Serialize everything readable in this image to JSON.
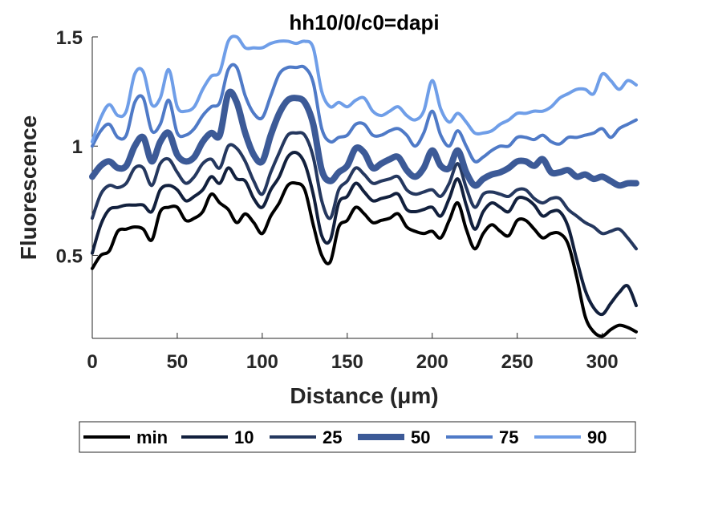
{
  "chart_data": {
    "type": "line",
    "title": "hh10/0/c0=dapi",
    "xlabel": "Distance (μm)",
    "ylabel": "Fluorescence",
    "xlim": [
      0,
      320
    ],
    "ylim": [
      0.12,
      1.5
    ],
    "xticks": [
      0,
      50,
      100,
      150,
      200,
      250,
      300
    ],
    "yticks": [
      0.5,
      1,
      1.5
    ],
    "ytick_labels": [
      "0.5",
      "1",
      "1.5"
    ],
    "grid": false,
    "legend_position": "bottom, outside plot, horizontal",
    "x": [
      0,
      5,
      10,
      15,
      20,
      25,
      30,
      35,
      40,
      45,
      50,
      55,
      60,
      65,
      70,
      75,
      80,
      85,
      90,
      95,
      100,
      105,
      110,
      115,
      120,
      125,
      130,
      135,
      140,
      145,
      150,
      155,
      160,
      165,
      170,
      175,
      180,
      185,
      190,
      195,
      200,
      205,
      210,
      215,
      220,
      225,
      230,
      235,
      240,
      245,
      250,
      255,
      260,
      265,
      270,
      275,
      280,
      285,
      290,
      295,
      300,
      305,
      310,
      315,
      320
    ],
    "series": [
      {
        "name": "min",
        "color": "#000000",
        "width": 4,
        "values": [
          0.44,
          0.5,
          0.52,
          0.61,
          0.62,
          0.63,
          0.62,
          0.57,
          0.7,
          0.72,
          0.72,
          0.66,
          0.67,
          0.7,
          0.78,
          0.74,
          0.71,
          0.65,
          0.69,
          0.65,
          0.6,
          0.68,
          0.74,
          0.82,
          0.83,
          0.8,
          0.64,
          0.5,
          0.47,
          0.63,
          0.66,
          0.72,
          0.69,
          0.65,
          0.66,
          0.67,
          0.69,
          0.63,
          0.61,
          0.6,
          0.61,
          0.58,
          0.66,
          0.74,
          0.62,
          0.53,
          0.6,
          0.64,
          0.61,
          0.59,
          0.66,
          0.66,
          0.62,
          0.58,
          0.6,
          0.6,
          0.55,
          0.4,
          0.22,
          0.15,
          0.13,
          0.16,
          0.18,
          0.17,
          0.15
        ]
      },
      {
        "name": "10",
        "color": "#12203d",
        "width": 4,
        "values": [
          0.51,
          0.64,
          0.71,
          0.72,
          0.73,
          0.73,
          0.73,
          0.7,
          0.8,
          0.82,
          0.8,
          0.75,
          0.77,
          0.8,
          0.86,
          0.83,
          0.9,
          0.85,
          0.84,
          0.76,
          0.72,
          0.8,
          0.86,
          0.95,
          0.97,
          0.92,
          0.78,
          0.59,
          0.57,
          0.74,
          0.77,
          0.83,
          0.79,
          0.75,
          0.76,
          0.77,
          0.78,
          0.71,
          0.7,
          0.71,
          0.72,
          0.68,
          0.76,
          0.85,
          0.73,
          0.62,
          0.7,
          0.74,
          0.72,
          0.7,
          0.76,
          0.76,
          0.73,
          0.68,
          0.7,
          0.7,
          0.63,
          0.48,
          0.34,
          0.26,
          0.23,
          0.28,
          0.33,
          0.36,
          0.27
        ]
      },
      {
        "name": "25",
        "color": "#25385f",
        "width": 4,
        "values": [
          0.67,
          0.78,
          0.82,
          0.81,
          0.83,
          0.9,
          0.9,
          0.82,
          0.92,
          0.94,
          0.88,
          0.83,
          0.86,
          0.92,
          0.94,
          0.9,
          1.0,
          0.99,
          0.93,
          0.84,
          0.78,
          0.88,
          0.97,
          1.05,
          1.06,
          1.05,
          0.95,
          0.75,
          0.67,
          0.8,
          0.84,
          0.9,
          0.87,
          0.83,
          0.84,
          0.85,
          0.86,
          0.8,
          0.78,
          0.79,
          0.8,
          0.77,
          0.83,
          0.92,
          0.81,
          0.72,
          0.78,
          0.79,
          0.78,
          0.77,
          0.8,
          0.8,
          0.76,
          0.74,
          0.76,
          0.76,
          0.71,
          0.68,
          0.65,
          0.63,
          0.6,
          0.61,
          0.62,
          0.58,
          0.53
        ]
      },
      {
        "name": "50",
        "color": "#3c5a97",
        "width": 8,
        "values": [
          0.86,
          0.91,
          0.93,
          0.9,
          0.91,
          1.0,
          1.04,
          0.93,
          1.02,
          1.06,
          0.96,
          0.93,
          0.95,
          1.02,
          1.06,
          1.05,
          1.24,
          1.2,
          1.06,
          0.96,
          0.93,
          1.05,
          1.15,
          1.21,
          1.22,
          1.2,
          1.1,
          0.89,
          0.84,
          0.88,
          0.91,
          0.99,
          0.97,
          0.9,
          0.92,
          0.94,
          0.95,
          0.89,
          0.86,
          0.9,
          0.98,
          0.91,
          0.9,
          0.98,
          0.88,
          0.82,
          0.85,
          0.87,
          0.88,
          0.9,
          0.93,
          0.93,
          0.91,
          0.94,
          0.88,
          0.88,
          0.89,
          0.86,
          0.87,
          0.85,
          0.86,
          0.84,
          0.82,
          0.83,
          0.83
        ]
      },
      {
        "name": "75",
        "color": "#4f7ac7",
        "width": 4,
        "values": [
          1.0,
          1.07,
          1.1,
          1.04,
          1.05,
          1.2,
          1.22,
          1.07,
          1.1,
          1.21,
          1.06,
          1.05,
          1.08,
          1.14,
          1.18,
          1.2,
          1.35,
          1.36,
          1.23,
          1.15,
          1.13,
          1.23,
          1.33,
          1.36,
          1.36,
          1.36,
          1.29,
          1.08,
          1.02,
          1.04,
          1.05,
          1.1,
          1.1,
          1.05,
          1.05,
          1.07,
          1.08,
          1.05,
          1.0,
          1.06,
          1.16,
          1.05,
          1.0,
          1.07,
          1.0,
          0.93,
          0.95,
          0.98,
          1.0,
          1.0,
          1.04,
          1.04,
          1.03,
          1.05,
          1.02,
          1.01,
          1.04,
          1.04,
          1.05,
          1.06,
          1.08,
          1.04,
          1.08,
          1.1,
          1.12
        ]
      },
      {
        "name": "90",
        "color": "#6f9ee8",
        "width": 4,
        "values": [
          1.02,
          1.13,
          1.19,
          1.14,
          1.16,
          1.33,
          1.34,
          1.19,
          1.22,
          1.35,
          1.18,
          1.16,
          1.18,
          1.26,
          1.32,
          1.34,
          1.48,
          1.5,
          1.45,
          1.45,
          1.45,
          1.47,
          1.48,
          1.48,
          1.47,
          1.48,
          1.45,
          1.25,
          1.18,
          1.2,
          1.18,
          1.21,
          1.22,
          1.16,
          1.14,
          1.16,
          1.18,
          1.14,
          1.12,
          1.16,
          1.3,
          1.17,
          1.11,
          1.15,
          1.11,
          1.06,
          1.06,
          1.07,
          1.1,
          1.12,
          1.15,
          1.15,
          1.16,
          1.16,
          1.18,
          1.22,
          1.24,
          1.26,
          1.26,
          1.24,
          1.33,
          1.3,
          1.26,
          1.3,
          1.28
        ]
      }
    ]
  }
}
